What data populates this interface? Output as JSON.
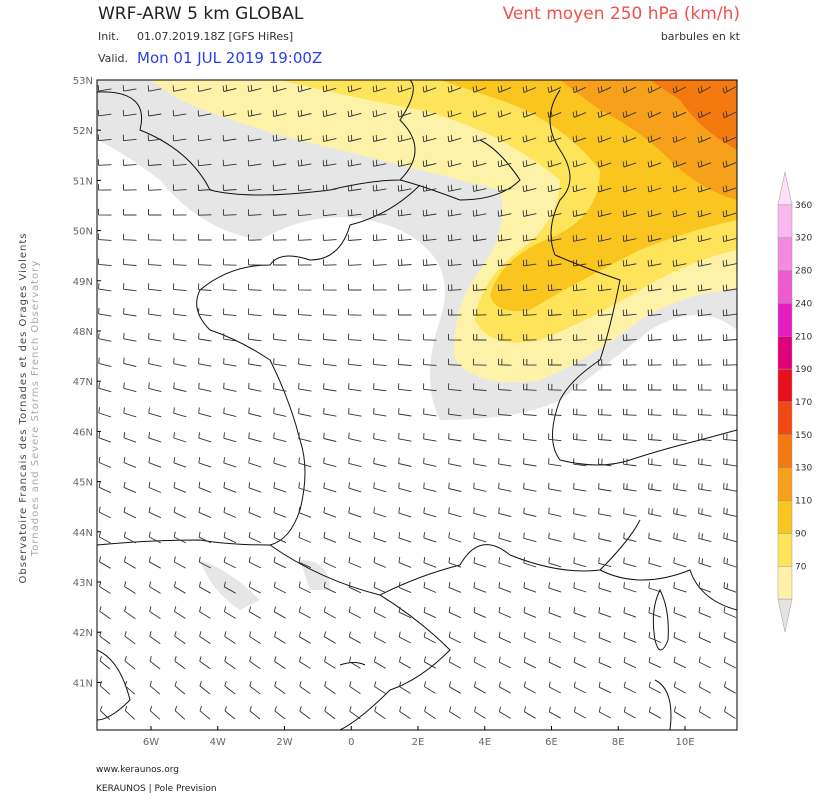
{
  "header": {
    "model": "WRF-ARW 5 km GLOBAL",
    "init_label": "Init.",
    "init": "01.07.2019.18Z [GFS HiRes]",
    "valid_label": "Valid.",
    "valid": "Mon 01 JUL 2019 19:00Z",
    "field": "Vent moyen 250 hPa (km/h)",
    "units_note": "barbules en kt"
  },
  "map": {
    "lat_labels": [
      "53N",
      "52N",
      "51N",
      "50N",
      "49N",
      "48N",
      "47N",
      "46N",
      "45N",
      "44N",
      "43N",
      "42N",
      "41N"
    ],
    "lon_labels": [
      "6W",
      "4W",
      "2W",
      "0",
      "2E",
      "4E",
      "6E",
      "8E",
      "10E"
    ]
  },
  "colorbar": {
    "ticks": [
      360,
      320,
      280,
      240,
      210,
      190,
      170,
      150,
      130,
      110,
      90,
      70
    ],
    "colors": [
      "#fde0f5",
      "#fbb8ec",
      "#f58ae0",
      "#ee5ad2",
      "#e61cc0",
      "#e0007a",
      "#e8101a",
      "#f04810",
      "#f47a10",
      "#f7a11a",
      "#fbc520",
      "#fde45a",
      "#fdf2a8",
      "#e4e4e4"
    ]
  },
  "side": {
    "line1": "Observatoire Francais des Tornades et des Orages Violents",
    "line2": "Tornadoes and Severe Storms French Observatory"
  },
  "footer": {
    "url": "www.keraunos.org",
    "org": "KERAUNOS | Pole Prevision"
  }
}
